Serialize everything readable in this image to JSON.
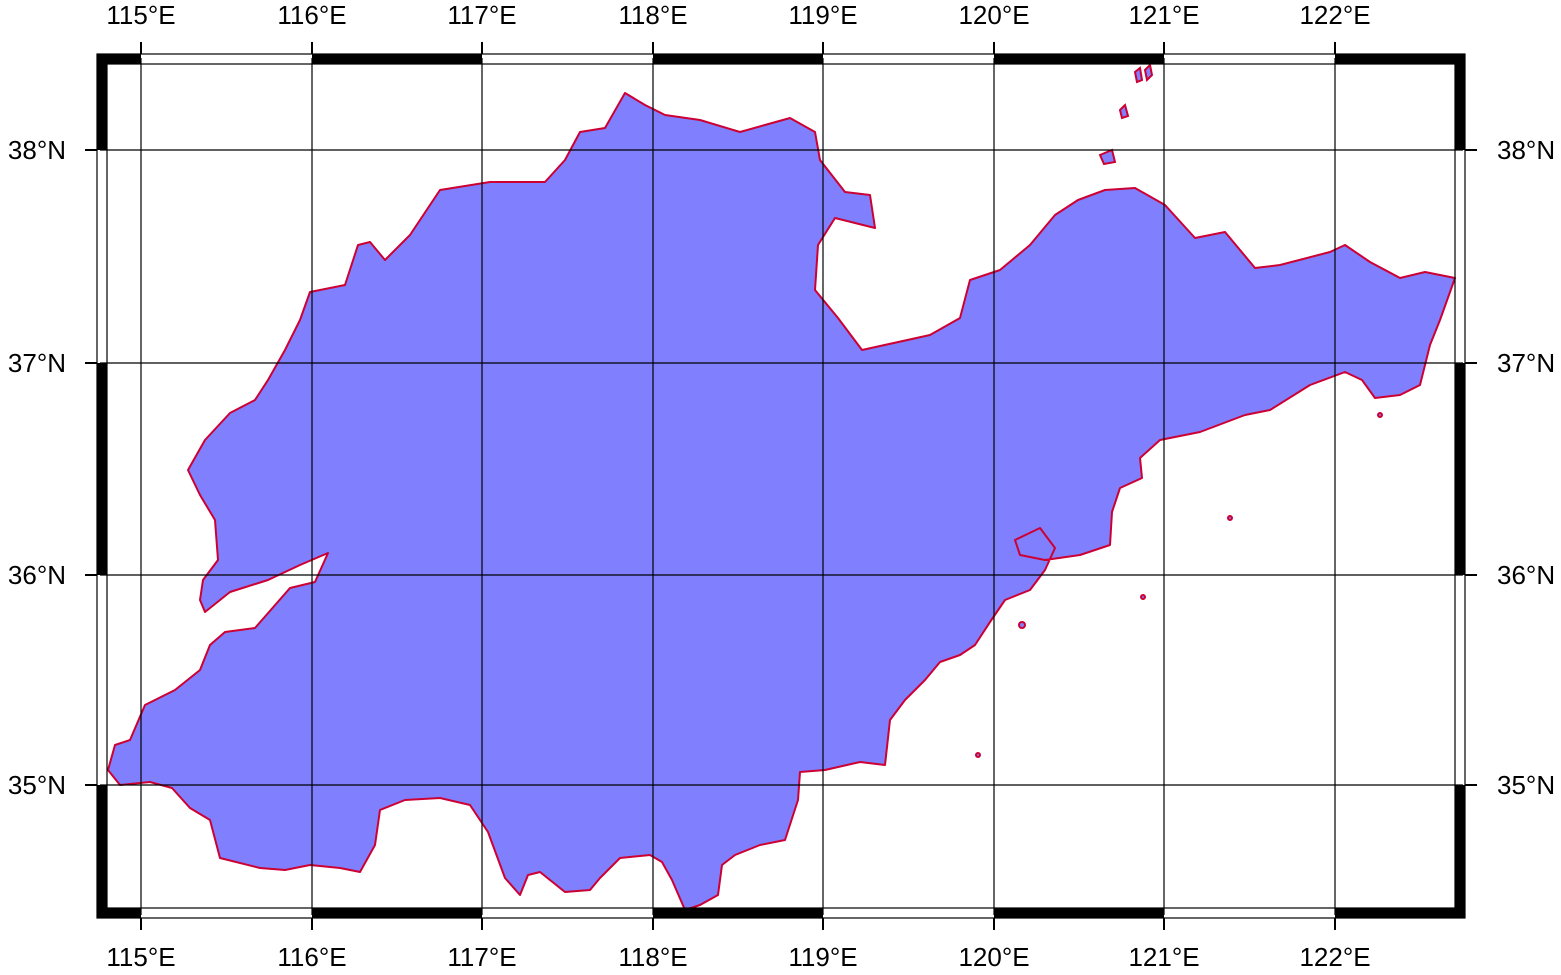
{
  "map": {
    "lon_labels": [
      "115°E",
      "116°E",
      "117°E",
      "118°E",
      "119°E",
      "120°E",
      "121°E",
      "122°E"
    ],
    "lat_labels": [
      "35°N",
      "36°N",
      "37°N",
      "38°N"
    ],
    "lon_values": [
      115,
      116,
      117,
      118,
      119,
      120,
      121,
      122
    ],
    "lat_values": [
      35,
      36,
      37,
      38
    ],
    "lon_range": [
      114.76,
      122.76
    ],
    "lat_range": [
      34.36,
      38.39
    ],
    "frame_style": "fancy (alternating black/white border)",
    "gridlines": true,
    "colors": {
      "land_fill": "#8080ff",
      "coastline": "#cc0033",
      "grid": "#000000",
      "background": "#ffffff"
    }
  }
}
